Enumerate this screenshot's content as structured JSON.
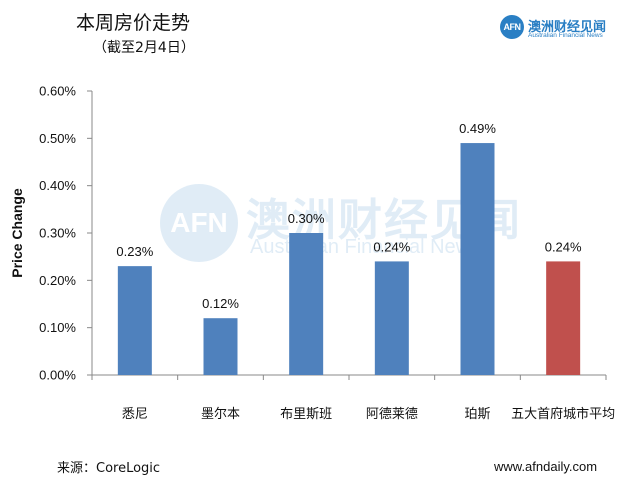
{
  "header": {
    "title": "本周房价走势",
    "subtitle": "（截至2月4日）"
  },
  "brand": {
    "logo_text": "AFN",
    "name_cn": "澳洲财经见闻",
    "name_en": "Australian Financial News"
  },
  "watermark": {
    "logo_text": "AFN",
    "name_cn": "澳洲财经见闻",
    "name_en": "Australian Financial News"
  },
  "footer": {
    "source": "来源：CoreLogic",
    "website": "www.afndaily.com"
  },
  "colors": {
    "primary_bar": "#4f81bd",
    "highlight_bar": "#c0504d",
    "axis": "#888888",
    "brand": "#2a7fc4"
  },
  "chart_data": {
    "type": "bar",
    "title": "本周房价走势",
    "subtitle": "（截至2月4日）",
    "xlabel": "",
    "ylabel": "Price Change",
    "categories": [
      "悉尼",
      "墨尔本",
      "布里斯班",
      "阿德莱德",
      "珀斯",
      "五大首府城市平均"
    ],
    "values": [
      0.23,
      0.12,
      0.3,
      0.24,
      0.49,
      0.24
    ],
    "data_labels": [
      "0.23%",
      "0.12%",
      "0.30%",
      "0.24%",
      "0.49%",
      "0.24%"
    ],
    "highlight_index": 5,
    "ylim": [
      0,
      0.6
    ],
    "yticks": [
      0,
      0.1,
      0.2,
      0.3,
      0.4,
      0.5,
      0.6
    ],
    "ytick_labels": [
      "0.00%",
      "0.10%",
      "0.20%",
      "0.30%",
      "0.40%",
      "0.50%",
      "0.60%"
    ],
    "grid": false,
    "legend": "none"
  }
}
